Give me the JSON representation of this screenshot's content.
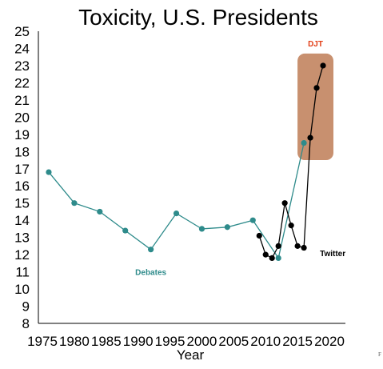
{
  "chart_data": {
    "type": "line",
    "title": "Toxicity, U.S. Presidents",
    "xlabel": "Year",
    "ylabel": "",
    "xlim": [
      1975,
      2020
    ],
    "ylim": [
      8,
      25
    ],
    "xticks": [
      "1975",
      "1980",
      "1985",
      "1990",
      "1995",
      "2000",
      "2005",
      "2010",
      "2015",
      "2020"
    ],
    "yticks": [
      "8",
      "9",
      "10",
      "11",
      "12",
      "13",
      "14",
      "15",
      "16",
      "17",
      "18",
      "19",
      "20",
      "21",
      "22",
      "23",
      "24",
      "25"
    ],
    "grid": false,
    "series": [
      {
        "name": "Debates",
        "color": "#2e8b8b",
        "x": [
          1976,
          1980,
          1984,
          1988,
          1992,
          1996,
          2000,
          2004,
          2008,
          2012,
          2016
        ],
        "y": [
          16.8,
          15.0,
          14.5,
          13.4,
          12.3,
          14.4,
          13.5,
          13.6,
          14.0,
          11.8,
          18.5
        ]
      },
      {
        "name": "Twitter",
        "color": "#000000",
        "x": [
          2009,
          2010,
          2011,
          2012,
          2013,
          2014,
          2015,
          2016,
          2017,
          2018,
          2019
        ],
        "y": [
          13.1,
          12.0,
          11.8,
          12.5,
          15.0,
          13.7,
          12.5,
          12.4,
          18.8,
          21.7,
          23.0
        ]
      }
    ],
    "highlight": {
      "label": "DJT",
      "color": "#c8906f",
      "label_color": "#e23c14",
      "x_range": [
        2016,
        2020
      ],
      "y_range": [
        17.5,
        23.7
      ]
    }
  },
  "edge_text": "F"
}
